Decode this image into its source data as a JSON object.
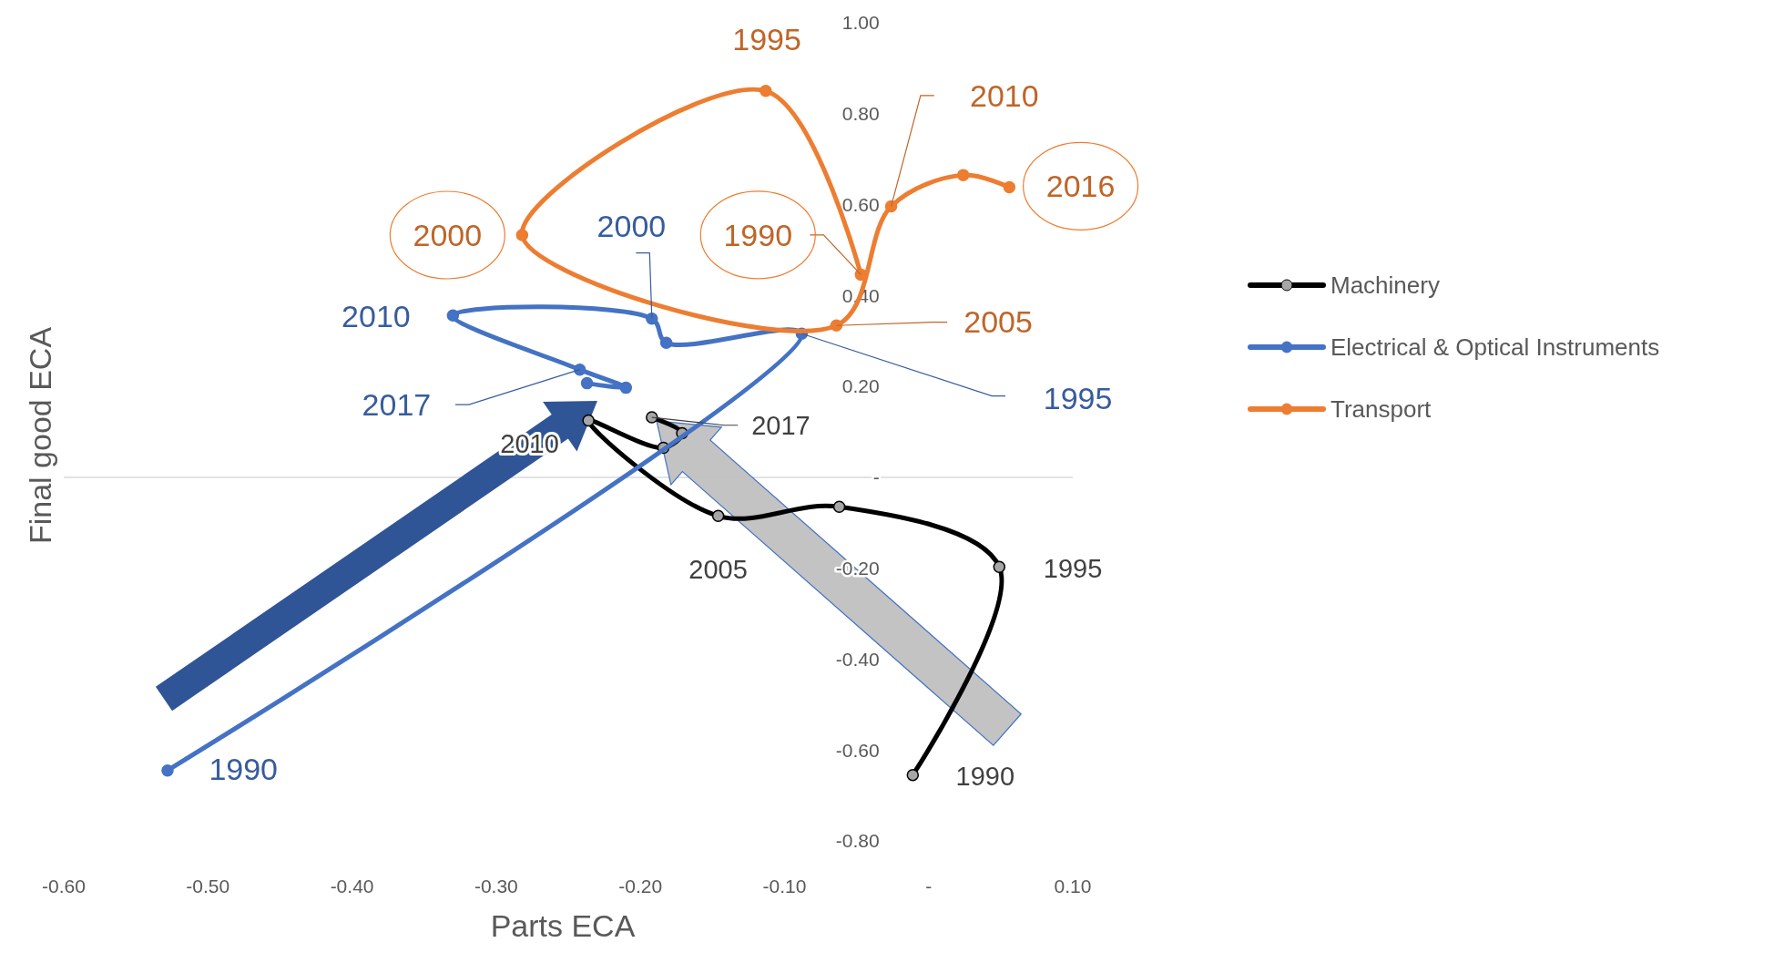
{
  "chart_data": {
    "type": "line",
    "xlabel": "Parts ECA",
    "ylabel": "Final good ECA",
    "xlim": [
      -0.6,
      0.1
    ],
    "ylim": [
      -0.8,
      1.0
    ],
    "xticks": [
      {
        "value": -0.6,
        "label": "-0.60"
      },
      {
        "value": -0.5,
        "label": "-0.50"
      },
      {
        "value": -0.4,
        "label": "-0.40"
      },
      {
        "value": -0.3,
        "label": "-0.30"
      },
      {
        "value": -0.2,
        "label": "-0.20"
      },
      {
        "value": -0.1,
        "label": "-0.10"
      },
      {
        "value": 0,
        "label": "-"
      },
      {
        "value": 0.1,
        "label": "0.10"
      }
    ],
    "yticks": [
      {
        "value": -0.8,
        "label": "-0.80"
      },
      {
        "value": -0.6,
        "label": "-0.60"
      },
      {
        "value": -0.4,
        "label": "-0.40"
      },
      {
        "value": -0.2,
        "label": "-0.20"
      },
      {
        "value": 0,
        "label": "-"
      },
      {
        "value": 0.2,
        "label": "0.20"
      },
      {
        "value": 0.4,
        "label": "0.40"
      },
      {
        "value": 0.6,
        "label": "0.60"
      },
      {
        "value": 0.8,
        "label": "0.80"
      },
      {
        "value": 1.0,
        "label": "1.00"
      }
    ],
    "grid": false,
    "ref_lines": [
      {
        "axis": "y",
        "value": 0,
        "color": "#d9d9d9"
      }
    ],
    "legend": "right",
    "marker": "circle",
    "line_style": "solid",
    "series": [
      {
        "name": "Machinery",
        "color": "#000000",
        "x": [
          -0.011,
          0.049,
          -0.062,
          -0.146,
          -0.236,
          -0.184,
          -0.171,
          -0.192
        ],
        "values": [
          -0.655,
          -0.197,
          -0.065,
          -0.085,
          0.125,
          0.065,
          0.097,
          0.132
        ]
      },
      {
        "name": "Electrical & Optical Instruments",
        "color": "#4472c4",
        "x": [
          -0.528,
          -0.088,
          -0.182,
          -0.192,
          -0.33,
          -0.242,
          -0.21,
          -0.237
        ],
        "values": [
          -0.645,
          0.316,
          0.296,
          0.349,
          0.356,
          0.237,
          0.197,
          0.207
        ]
      },
      {
        "name": "Transport",
        "color": "#ed7d31",
        "x": [
          -0.047,
          -0.113,
          -0.282,
          -0.064,
          -0.026,
          0.024,
          0.056
        ],
        "values": [
          0.446,
          0.85,
          0.533,
          0.334,
          0.596,
          0.665,
          0.638
        ]
      }
    ],
    "annotations": [
      {
        "text": "1995",
        "x": -0.113,
        "y": 0.85
      },
      {
        "text": "2000",
        "x": -0.282,
        "y": 0.533
      },
      {
        "text": "1990",
        "x": -0.047,
        "y": 0.446
      },
      {
        "text": "2010",
        "x": -0.026,
        "y": 0.596
      },
      {
        "text": "2005",
        "x": -0.064,
        "y": 0.334
      },
      {
        "text": "2016",
        "x": 0.056,
        "y": 0.638
      },
      {
        "text": "2000",
        "x": -0.192,
        "y": 0.349
      },
      {
        "text": "2010",
        "x": -0.33,
        "y": 0.356
      },
      {
        "text": "2017",
        "x": -0.242,
        "y": 0.237
      },
      {
        "text": "1995",
        "x": -0.088,
        "y": 0.316
      },
      {
        "text": "1990",
        "x": -0.528,
        "y": -0.645
      },
      {
        "text": "1990",
        "x": -0.011,
        "y": -0.655
      },
      {
        "text": "1995",
        "x": 0.049,
        "y": -0.197
      },
      {
        "text": "2005",
        "x": -0.146,
        "y": -0.085
      },
      {
        "text": "2010",
        "x": -0.236,
        "y": 0.125
      },
      {
        "text": "2017",
        "x": -0.192,
        "y": 0.132
      }
    ]
  }
}
